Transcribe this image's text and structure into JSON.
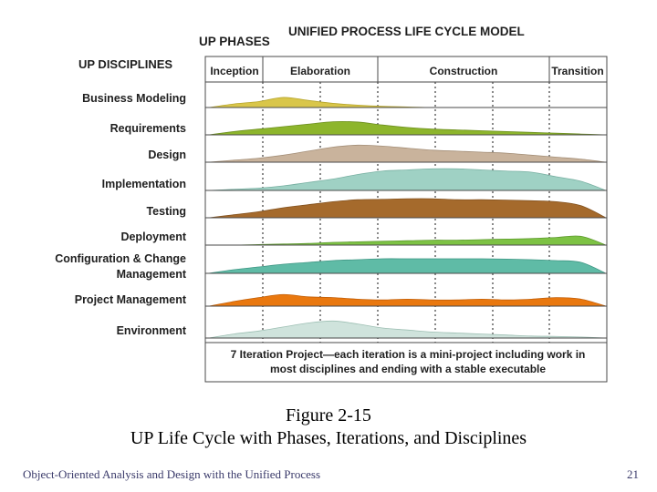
{
  "diagram": {
    "title": "UNIFIED PROCESS LIFE CYCLE MODEL",
    "phases_header": "UP PHASES",
    "disciplines_header": "UP DISCIPLINES",
    "phases": [
      "Inception",
      "Elaboration",
      "Construction",
      "Transition"
    ],
    "iteration_note_line1": "7 Iteration Project—each iteration is a mini-project including work in",
    "iteration_note_line2": "most disciplines and ending with a stable executable",
    "disciplines": [
      {
        "name": "Business Modeling",
        "color": "#d9c64a",
        "stroke": "#b7a62e",
        "workload": [
          0,
          0.3,
          0.5,
          0.85,
          0.6,
          0.35,
          0.2,
          0.1,
          0.05,
          0,
          0,
          0,
          0,
          0,
          0,
          0,
          0
        ]
      },
      {
        "name": "Requirements",
        "color": "#8db52c",
        "stroke": "#6e9020",
        "workload": [
          0,
          0.2,
          0.35,
          0.5,
          0.65,
          0.8,
          0.78,
          0.6,
          0.45,
          0.35,
          0.3,
          0.25,
          0.2,
          0.15,
          0.1,
          0.05,
          0
        ]
      },
      {
        "name": "Design",
        "color": "#c9b39c",
        "stroke": "#a48f78",
        "workload": [
          0,
          0.1,
          0.2,
          0.35,
          0.55,
          0.75,
          0.85,
          0.8,
          0.7,
          0.6,
          0.55,
          0.5,
          0.45,
          0.35,
          0.25,
          0.15,
          0
        ]
      },
      {
        "name": "Implementation",
        "color": "#9fd1c4",
        "stroke": "#78b0a2",
        "workload": [
          0,
          0.05,
          0.1,
          0.2,
          0.35,
          0.5,
          0.7,
          0.85,
          0.9,
          0.95,
          0.95,
          0.9,
          0.85,
          0.8,
          0.6,
          0.4,
          0
        ]
      },
      {
        "name": "Testing",
        "color": "#a56a2c",
        "stroke": "#83521f",
        "workload": [
          0,
          0.15,
          0.3,
          0.5,
          0.65,
          0.8,
          0.9,
          0.92,
          0.95,
          0.95,
          0.9,
          0.9,
          0.88,
          0.85,
          0.8,
          0.6,
          0
        ]
      },
      {
        "name": "Deployment",
        "color": "#7dc244",
        "stroke": "#5e9a2e",
        "workload": [
          0,
          0,
          0.05,
          0.1,
          0.15,
          0.25,
          0.3,
          0.35,
          0.4,
          0.45,
          0.45,
          0.5,
          0.55,
          0.6,
          0.7,
          0.8,
          0
        ]
      },
      {
        "name": "Configuration & Change Management",
        "color": "#5fbba6",
        "stroke": "#3f9784",
        "workload": [
          0,
          0.2,
          0.35,
          0.5,
          0.6,
          0.7,
          0.75,
          0.8,
          0.8,
          0.8,
          0.8,
          0.8,
          0.78,
          0.75,
          0.7,
          0.6,
          0
        ]
      },
      {
        "name": "Project Management",
        "color": "#e9780f",
        "stroke": "#c25f08",
        "workload": [
          0,
          0.3,
          0.55,
          0.75,
          0.6,
          0.55,
          0.45,
          0.4,
          0.45,
          0.4,
          0.4,
          0.45,
          0.4,
          0.45,
          0.55,
          0.45,
          0
        ]
      },
      {
        "name": "Environment",
        "color": "#cfe3dc",
        "stroke": "#9dbfb3",
        "workload": [
          0,
          0.2,
          0.35,
          0.55,
          0.75,
          0.85,
          0.7,
          0.5,
          0.4,
          0.3,
          0.25,
          0.2,
          0.15,
          0.1,
          0.08,
          0.05,
          0
        ]
      }
    ]
  },
  "caption": {
    "line1": "Figure 2-15",
    "line2": "UP Life Cycle with Phases, Iterations, and Disciplines"
  },
  "footer": {
    "book_title": "Object-Oriented Analysis and Design with the Unified Process",
    "page_number": "21"
  }
}
